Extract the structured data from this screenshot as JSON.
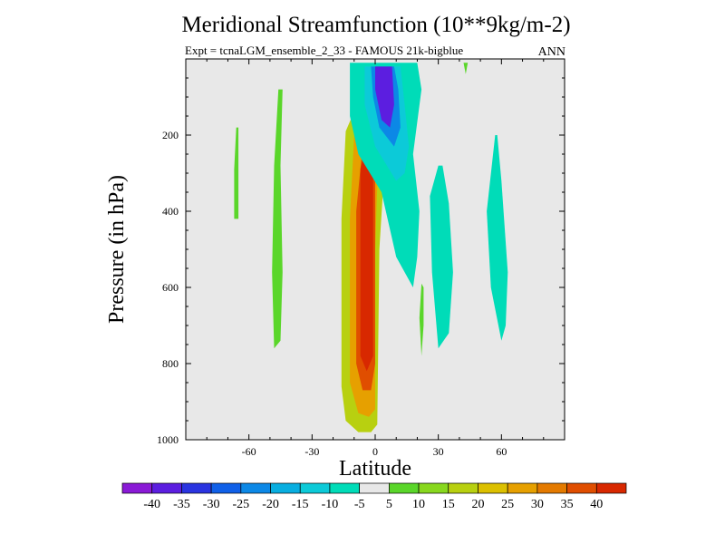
{
  "chart_data": {
    "type": "heatmap",
    "title": "Meridional Streamfunction (10**9kg/m-2)",
    "subtitle": "Expt = tcnaLGM_ensemble_2_33 - FAMOUS 21k-bigblue",
    "season": "ANN",
    "xlabel": "Latitude",
    "ylabel": "Pressure (in hPa)",
    "xlim": [
      -90,
      90
    ],
    "ylim": [
      1000,
      0
    ],
    "x_ticks": [
      -60,
      -30,
      0,
      30,
      60
    ],
    "x_tick_labels": [
      "-60",
      "-30",
      "0",
      "30",
      "60"
    ],
    "y_ticks": [
      200,
      400,
      600,
      800,
      1000
    ],
    "y_tick_labels": [
      "200",
      "400",
      "600",
      "800",
      "1000"
    ],
    "colorbar": {
      "levels": [
        "-40",
        "-35",
        "-30",
        "-25",
        "-20",
        "-15",
        "-10",
        "-5",
        "5",
        "10",
        "15",
        "20",
        "25",
        "30",
        "35",
        "40"
      ],
      "colors": [
        "#8a1ad6",
        "#5c1ee0",
        "#2a34e0",
        "#1060e8",
        "#0c88e6",
        "#08aee0",
        "#0ccad8",
        "#00dcb8",
        "#e8e8e8",
        "#5ad62a",
        "#88d81e",
        "#b8d010",
        "#dcc000",
        "#e6a000",
        "#e47a00",
        "#e04e00",
        "#d82800"
      ]
    },
    "background_color": "#e8e8e8",
    "contours": [
      {
        "name": "ferrel-cell-south-outer-a",
        "value": 7.5,
        "points": [
          [
            -46,
            80
          ],
          [
            -48,
            280
          ],
          [
            -49,
            560
          ],
          [
            -48,
            760
          ],
          [
            -45,
            740
          ],
          [
            -44,
            560
          ],
          [
            -45,
            280
          ],
          [
            -44,
            80
          ]
        ]
      },
      {
        "name": "ferrel-cell-south-outer-b",
        "value": 7.5,
        "points": [
          [
            -66,
            180
          ],
          [
            -67,
            290
          ],
          [
            -67,
            420
          ],
          [
            -65,
            420
          ],
          [
            -65,
            290
          ],
          [
            -65,
            180
          ]
        ]
      },
      {
        "name": "hadley-cell-south-15",
        "value": 15,
        "points": [
          [
            -4,
            60
          ],
          [
            -14,
            190
          ],
          [
            -16,
            420
          ],
          [
            -16,
            860
          ],
          [
            -14,
            950
          ],
          [
            -8,
            980
          ],
          [
            -2,
            980
          ],
          [
            1,
            960
          ],
          [
            2,
            500
          ],
          [
            4,
            320
          ],
          [
            0,
            260
          ],
          [
            -1,
            150
          ],
          [
            0,
            70
          ]
        ]
      },
      {
        "name": "hadley-cell-south-25",
        "value": 25,
        "points": [
          [
            -2,
            90
          ],
          [
            -10,
            200
          ],
          [
            -12,
            420
          ],
          [
            -12,
            850
          ],
          [
            -8,
            930
          ],
          [
            -3,
            940
          ],
          [
            0,
            920
          ],
          [
            0,
            500
          ],
          [
            1,
            330
          ],
          [
            -1,
            240
          ],
          [
            -1,
            150
          ]
        ]
      },
      {
        "name": "hadley-cell-south-35",
        "value": 35,
        "points": [
          [
            -2,
            140
          ],
          [
            -6,
            230
          ],
          [
            -9,
            400
          ],
          [
            -9,
            800
          ],
          [
            -6,
            870
          ],
          [
            -2,
            870
          ],
          [
            0,
            800
          ],
          [
            0,
            400
          ],
          [
            0,
            260
          ]
        ]
      },
      {
        "name": "hadley-cell-south-core",
        "value": 42,
        "points": [
          [
            -3,
            190
          ],
          [
            -7,
            290
          ],
          [
            -7,
            780
          ],
          [
            -4,
            820
          ],
          [
            -1,
            780
          ],
          [
            -1,
            300
          ]
        ]
      },
      {
        "name": "hadley-cell-north-outer",
        "value": -7.5,
        "points": [
          [
            -12,
            10
          ],
          [
            -12,
            150
          ],
          [
            -8,
            250
          ],
          [
            3,
            350
          ],
          [
            10,
            520
          ],
          [
            18,
            600
          ],
          [
            20,
            520
          ],
          [
            21,
            400
          ],
          [
            18,
            250
          ],
          [
            22,
            80
          ],
          [
            20,
            10
          ]
        ]
      },
      {
        "name": "hadley-cell-north-15",
        "value": -15,
        "points": [
          [
            -5,
            20
          ],
          [
            -5,
            120
          ],
          [
            0,
            230
          ],
          [
            10,
            320
          ],
          [
            14,
            300
          ],
          [
            16,
            230
          ],
          [
            14,
            120
          ],
          [
            12,
            20
          ]
        ]
      },
      {
        "name": "hadley-cell-north-25",
        "value": -25,
        "points": [
          [
            -2,
            20
          ],
          [
            -1,
            100
          ],
          [
            2,
            180
          ],
          [
            9,
            230
          ],
          [
            12,
            180
          ],
          [
            11,
            80
          ],
          [
            9,
            20
          ]
        ]
      },
      {
        "name": "hadley-cell-north-core",
        "value": -40,
        "points": [
          [
            0,
            20
          ],
          [
            0,
            80
          ],
          [
            3,
            160
          ],
          [
            7,
            180
          ],
          [
            9,
            120
          ],
          [
            8,
            20
          ]
        ]
      },
      {
        "name": "ferrel-cell-north-a",
        "value": -7.5,
        "points": [
          [
            30,
            280
          ],
          [
            26,
            360
          ],
          [
            27,
            560
          ],
          [
            30,
            760
          ],
          [
            35,
            720
          ],
          [
            37,
            560
          ],
          [
            35,
            380
          ],
          [
            32,
            280
          ]
        ]
      },
      {
        "name": "ferrel-cell-north-b",
        "value": -7.5,
        "points": [
          [
            57,
            200
          ],
          [
            53,
            400
          ],
          [
            55,
            600
          ],
          [
            60,
            740
          ],
          [
            62,
            700
          ],
          [
            63,
            560
          ],
          [
            60,
            320
          ],
          [
            58,
            200
          ]
        ]
      },
      {
        "name": "polar-cell-north-fringe",
        "value": 7.5,
        "points": [
          [
            42,
            10
          ],
          [
            43,
            40
          ],
          [
            44,
            10
          ]
        ]
      },
      {
        "name": "small-cell-north-positive",
        "value": 7.5,
        "points": [
          [
            22,
            590
          ],
          [
            21,
            680
          ],
          [
            22,
            780
          ],
          [
            23,
            700
          ],
          [
            23,
            600
          ]
        ]
      }
    ]
  }
}
